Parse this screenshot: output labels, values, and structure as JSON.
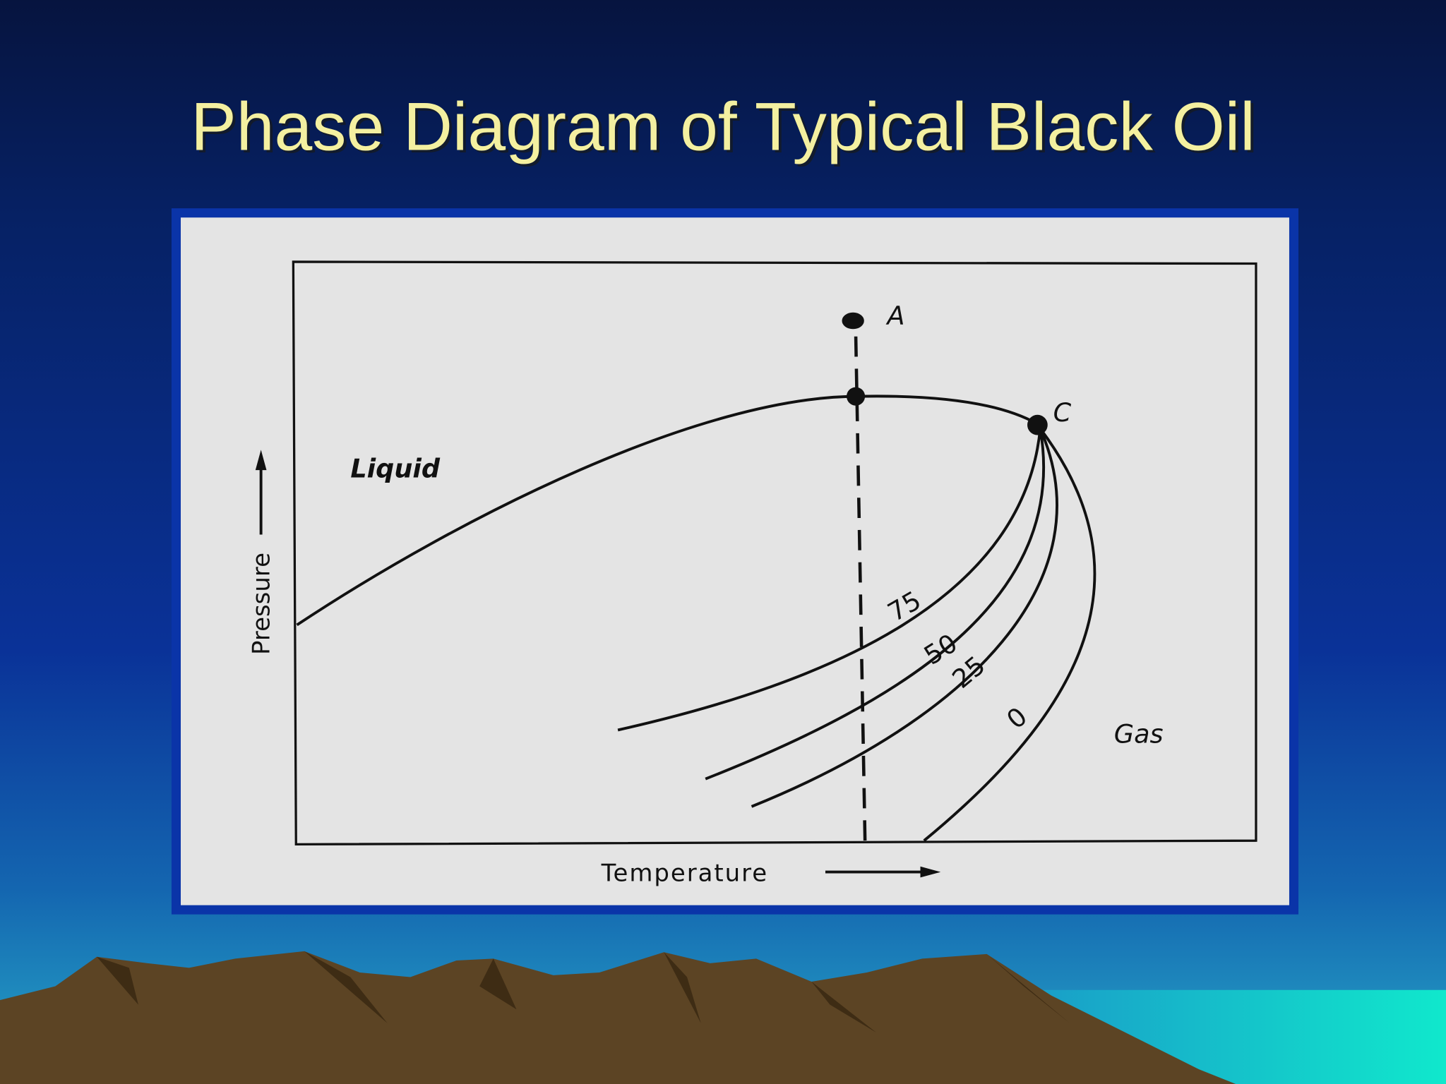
{
  "title": "Phase Diagram of Typical Black Oil",
  "diagram": {
    "regions": [
      {
        "label": "Liquid"
      },
      {
        "label": "Gas"
      }
    ],
    "points": [
      {
        "label": "A"
      },
      {
        "label": "C"
      }
    ],
    "quality_lines": [
      {
        "label": "75"
      },
      {
        "label": "50"
      },
      {
        "label": "25"
      },
      {
        "label": "0"
      }
    ],
    "axes": {
      "x": "Temperature",
      "y": "Pressure"
    }
  }
}
